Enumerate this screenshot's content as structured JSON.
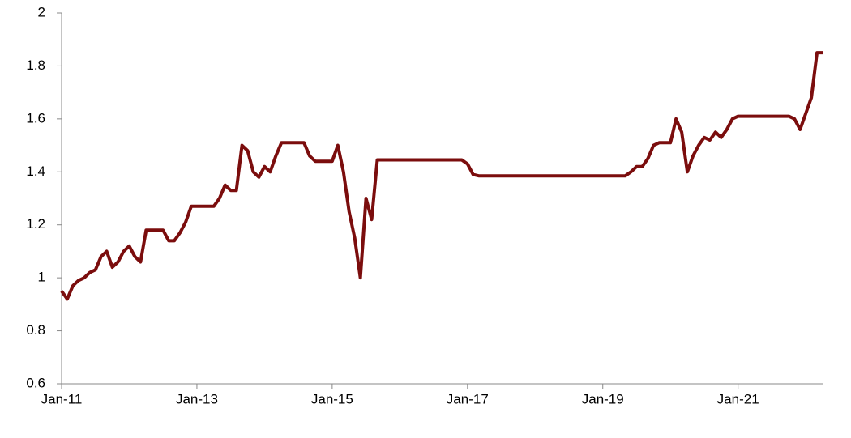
{
  "chart_data": {
    "type": "line",
    "x": [
      "2011-01",
      "2011-02",
      "2011-03",
      "2011-04",
      "2011-05",
      "2011-06",
      "2011-07",
      "2011-08",
      "2011-09",
      "2011-10",
      "2011-11",
      "2011-12",
      "2012-01",
      "2012-02",
      "2012-03",
      "2012-04",
      "2012-05",
      "2012-06",
      "2012-07",
      "2012-08",
      "2012-09",
      "2012-10",
      "2012-11",
      "2012-12",
      "2013-01",
      "2013-02",
      "2013-03",
      "2013-04",
      "2013-05",
      "2013-06",
      "2013-07",
      "2013-08",
      "2013-09",
      "2013-10",
      "2013-11",
      "2013-12",
      "2014-01",
      "2014-02",
      "2014-03",
      "2014-04",
      "2014-05",
      "2014-06",
      "2014-07",
      "2014-08",
      "2014-09",
      "2014-10",
      "2014-11",
      "2014-12",
      "2015-01",
      "2015-02",
      "2015-03",
      "2015-04",
      "2015-05",
      "2015-06",
      "2015-07",
      "2015-08",
      "2015-09",
      "2015-10",
      "2015-11",
      "2015-12",
      "2016-01",
      "2016-02",
      "2016-03",
      "2016-04",
      "2016-05",
      "2016-06",
      "2016-07",
      "2016-08",
      "2016-09",
      "2016-10",
      "2016-11",
      "2016-12",
      "2017-01",
      "2017-02",
      "2017-03",
      "2017-04",
      "2017-05",
      "2017-06",
      "2017-07",
      "2017-08",
      "2017-09",
      "2017-10",
      "2017-11",
      "2017-12",
      "2018-01",
      "2018-02",
      "2018-03",
      "2018-04",
      "2018-05",
      "2018-06",
      "2018-07",
      "2018-08",
      "2018-09",
      "2018-10",
      "2018-11",
      "2018-12",
      "2019-01",
      "2019-02",
      "2019-03",
      "2019-04",
      "2019-05",
      "2019-06",
      "2019-07",
      "2019-08",
      "2019-09",
      "2019-10",
      "2019-11",
      "2019-12",
      "2020-01",
      "2020-02",
      "2020-03",
      "2020-04",
      "2020-05",
      "2020-06",
      "2020-07",
      "2020-08",
      "2020-09",
      "2020-10",
      "2020-11",
      "2020-12",
      "2021-01",
      "2021-02",
      "2021-03",
      "2021-04",
      "2021-05",
      "2021-06",
      "2021-07",
      "2021-08",
      "2021-09",
      "2021-10",
      "2021-11",
      "2021-12",
      "2022-01",
      "2022-02",
      "2022-03",
      "2022-04"
    ],
    "series": [
      {
        "color": "#7b0d0d",
        "values": [
          0.95,
          0.92,
          0.97,
          0.99,
          1.0,
          1.02,
          1.03,
          1.08,
          1.1,
          1.04,
          1.06,
          1.1,
          1.12,
          1.08,
          1.06,
          1.18,
          1.18,
          1.18,
          1.18,
          1.14,
          1.14,
          1.17,
          1.21,
          1.27,
          1.27,
          1.27,
          1.27,
          1.27,
          1.3,
          1.35,
          1.33,
          1.33,
          1.5,
          1.48,
          1.4,
          1.38,
          1.42,
          1.4,
          1.46,
          1.51,
          1.51,
          1.51,
          1.51,
          1.51,
          1.46,
          1.44,
          1.44,
          1.44,
          1.44,
          1.5,
          1.4,
          1.25,
          1.15,
          1.0,
          1.3,
          1.22,
          1.445,
          1.445,
          1.445,
          1.445,
          1.445,
          1.445,
          1.445,
          1.445,
          1.445,
          1.445,
          1.445,
          1.445,
          1.445,
          1.445,
          1.445,
          1.445,
          1.43,
          1.39,
          1.385,
          1.385,
          1.385,
          1.385,
          1.385,
          1.385,
          1.385,
          1.385,
          1.385,
          1.385,
          1.385,
          1.385,
          1.385,
          1.385,
          1.385,
          1.385,
          1.385,
          1.385,
          1.385,
          1.385,
          1.385,
          1.385,
          1.385,
          1.385,
          1.385,
          1.385,
          1.385,
          1.4,
          1.42,
          1.42,
          1.45,
          1.5,
          1.51,
          1.51,
          1.51,
          1.6,
          1.55,
          1.4,
          1.46,
          1.5,
          1.53,
          1.52,
          1.55,
          1.53,
          1.56,
          1.6,
          1.61,
          1.61,
          1.61,
          1.61,
          1.61,
          1.61,
          1.61,
          1.61,
          1.61,
          1.61,
          1.6,
          1.56,
          1.62,
          1.68,
          1.85,
          1.85
        ]
      }
    ],
    "xlim": [
      "2011-01",
      "2022-04"
    ],
    "xticks": [
      {
        "value": "2011-01",
        "label": "Jan-11"
      },
      {
        "value": "2013-01",
        "label": "Jan-13"
      },
      {
        "value": "2015-01",
        "label": "Jan-15"
      },
      {
        "value": "2017-01",
        "label": "Jan-17"
      },
      {
        "value": "2019-01",
        "label": "Jan-19"
      },
      {
        "value": "2021-01",
        "label": "Jan-21"
      }
    ],
    "ylim": [
      0.6,
      2
    ],
    "yticks": [
      0.6,
      0.8,
      1,
      1.2,
      1.4,
      1.6,
      1.8,
      2
    ]
  }
}
